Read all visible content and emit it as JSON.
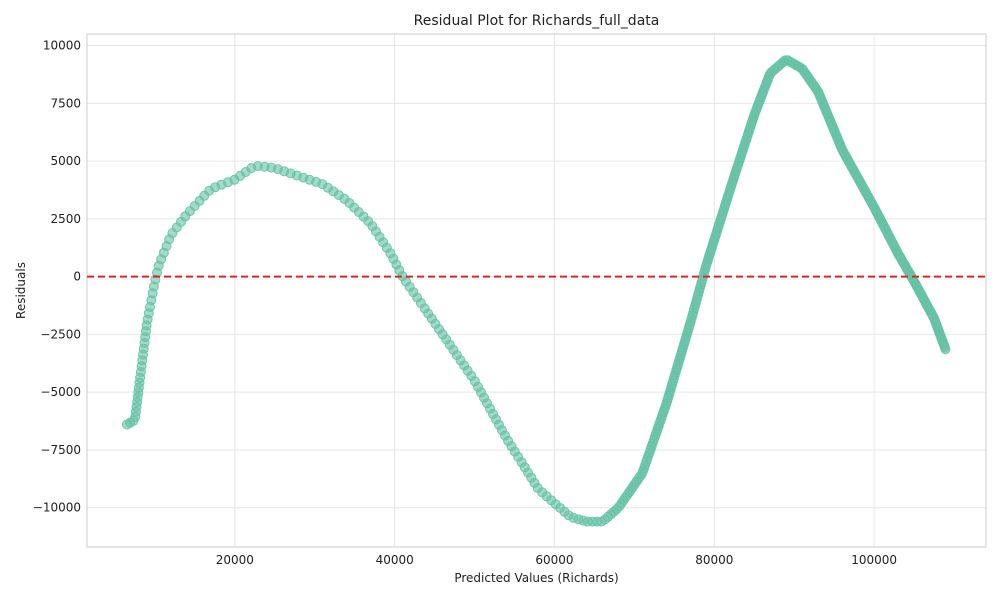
{
  "chart_data": {
    "type": "scatter",
    "title": "Residual Plot for Richards_full_data",
    "xlabel": "Predicted Values (Richards)",
    "ylabel": "Residuals",
    "xlim": [
      1500,
      114000
    ],
    "ylim": [
      -11700,
      10500
    ],
    "xticks": [
      20000,
      40000,
      60000,
      80000,
      100000
    ],
    "xtick_labels": [
      "20000",
      "40000",
      "60000",
      "80000",
      "100000"
    ],
    "yticks": [
      -10000,
      -7500,
      -5000,
      -2500,
      0,
      2500,
      5000,
      7500,
      10000
    ],
    "ytick_labels": [
      "−10000",
      "−7500",
      "−5000",
      "−2500",
      "0",
      "2500",
      "5000",
      "7500",
      "10000"
    ],
    "grid": true,
    "reference_line": {
      "y": 0,
      "color": "#d62728",
      "style": "dashed"
    },
    "point_color": "#66c2a5",
    "curve_anchors": [
      [
        6500,
        -6400
      ],
      [
        7500,
        -6200
      ],
      [
        8000,
        -4800
      ],
      [
        9000,
        -2000
      ],
      [
        10000,
        -200
      ],
      [
        10500,
        500
      ],
      [
        12000,
        1800
      ],
      [
        14000,
        2700
      ],
      [
        17000,
        3800
      ],
      [
        20000,
        4200
      ],
      [
        22500,
        4800
      ],
      [
        25000,
        4700
      ],
      [
        28000,
        4350
      ],
      [
        31000,
        4000
      ],
      [
        34000,
        3300
      ],
      [
        37000,
        2300
      ],
      [
        39500,
        1000
      ],
      [
        41000,
        0
      ],
      [
        43000,
        -1000
      ],
      [
        46000,
        -2500
      ],
      [
        50000,
        -4500
      ],
      [
        54000,
        -7000
      ],
      [
        58000,
        -9200
      ],
      [
        62000,
        -10400
      ],
      [
        64000,
        -10600
      ],
      [
        66000,
        -10600
      ],
      [
        68000,
        -10000
      ],
      [
        71000,
        -8500
      ],
      [
        74000,
        -5500
      ],
      [
        77000,
        -2000
      ],
      [
        79000,
        500
      ],
      [
        82000,
        3800
      ],
      [
        85000,
        7000
      ],
      [
        87000,
        8800
      ],
      [
        89000,
        9400
      ],
      [
        91000,
        9000
      ],
      [
        93000,
        8000
      ],
      [
        96000,
        5500
      ],
      [
        100000,
        3000
      ],
      [
        103000,
        1000
      ],
      [
        105000,
        -200
      ],
      [
        107500,
        -1800
      ],
      [
        109000,
        -3200
      ]
    ],
    "series": [
      {
        "density": [
          [
            6500,
            3
          ],
          [
            10000,
            7
          ],
          [
            60000,
            6
          ],
          [
            70000,
            3
          ],
          [
            109000,
            2
          ]
        ]
      }
    ]
  }
}
